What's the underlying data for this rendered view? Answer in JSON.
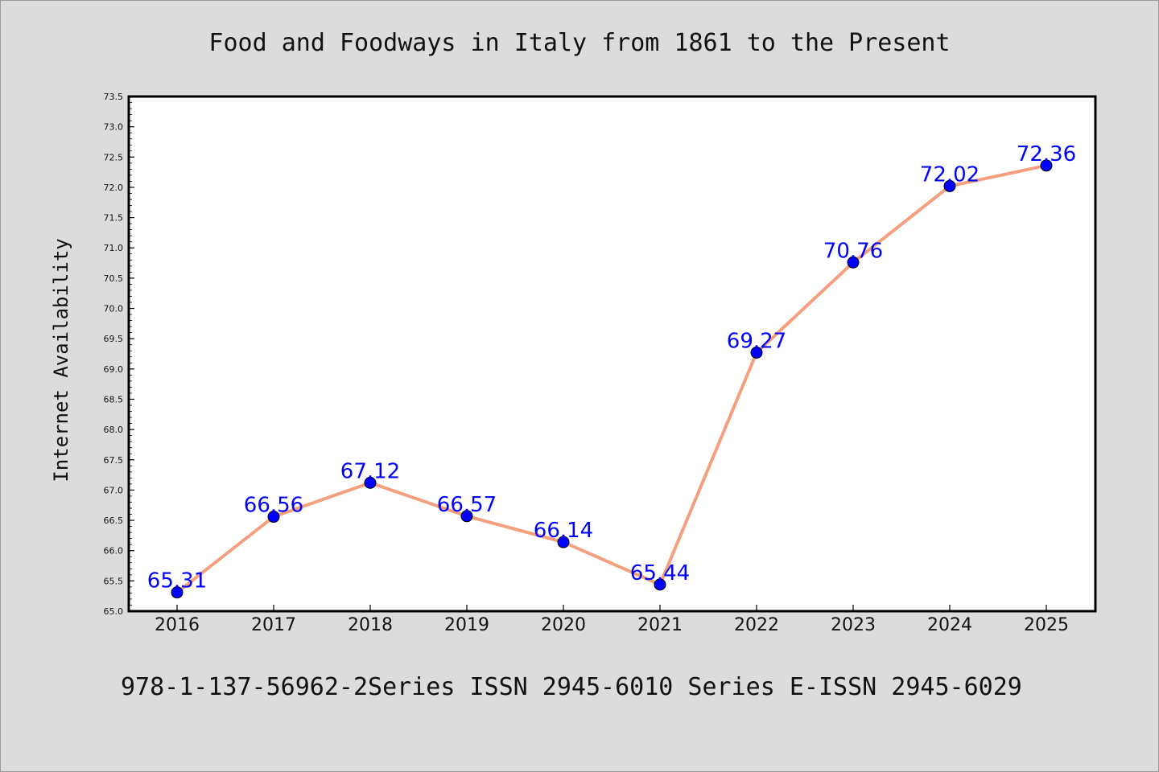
{
  "chart_data": {
    "type": "line",
    "title": "Food and Foodways in Italy from 1861 to the Present",
    "xlabel": "",
    "ylabel": "Internet Availability",
    "footer": "978-1-137-56962-2Series ISSN 2945-6010 Series E-ISSN 2945-6029",
    "categories": [
      "2016",
      "2017",
      "2018",
      "2019",
      "2020",
      "2021",
      "2022",
      "2023",
      "2024",
      "2025"
    ],
    "series": [
      {
        "values": [
          65.31,
          66.56,
          67.12,
          66.57,
          66.14,
          65.44,
          69.27,
          70.76,
          72.02,
          72.36
        ],
        "labels": [
          "65.31",
          "66.56",
          "67.12",
          "66.57",
          "66.14",
          "65.44",
          "69.27",
          "70.76",
          "72.02",
          "72.36"
        ],
        "line_color": "#f4a07e",
        "marker_color": "#0000ff",
        "label_color": "#0000ff"
      }
    ],
    "ylim": [
      65.0,
      73.5
    ],
    "yticks": [
      "65.0",
      "65.5",
      "66.0",
      "66.5",
      "67.0",
      "67.5",
      "68.0",
      "68.5",
      "69.0",
      "69.5",
      "70.0",
      "70.5",
      "71.0",
      "71.5",
      "72.0",
      "72.5",
      "73.0",
      "73.5"
    ],
    "grid": false,
    "background": "#dcdcdc",
    "plot_background": "#ffffff"
  }
}
